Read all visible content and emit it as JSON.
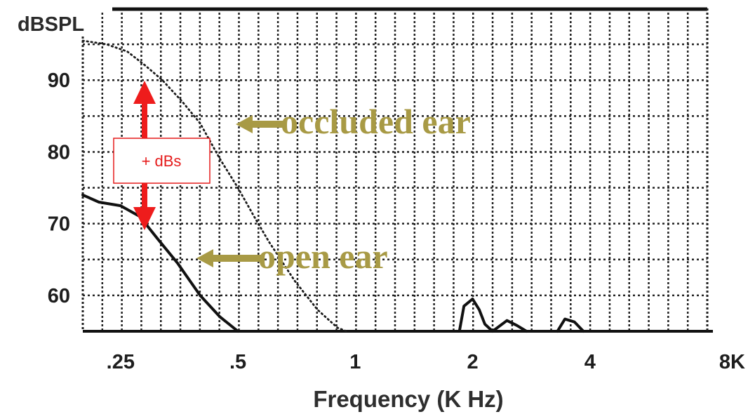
{
  "chart_data": {
    "type": "line",
    "title": "",
    "xlabel": "Frequency (K Hz)",
    "ylabel": "dBSPL",
    "x_scale": "log",
    "x_ticks": [
      {
        "value": 0.25,
        "label": ".25"
      },
      {
        "value": 0.5,
        "label": ".5"
      },
      {
        "value": 1,
        "label": "1"
      },
      {
        "value": 2,
        "label": "2"
      },
      {
        "value": 4,
        "label": "4"
      },
      {
        "value": 8,
        "label": "8K"
      }
    ],
    "y_ticks": [
      {
        "value": 60,
        "label": "60"
      },
      {
        "value": 70,
        "label": "70"
      },
      {
        "value": 80,
        "label": "80"
      },
      {
        "value": 90,
        "label": "90"
      }
    ],
    "xlim": [
      0.2,
      8
    ],
    "ylim": [
      55,
      100
    ],
    "grid": true,
    "series": [
      {
        "name": "",
        "style": "dotted",
        "color": "#1a1a1a",
        "points": [
          [
            0.2,
            95.5
          ],
          [
            0.23,
            95.0
          ],
          [
            0.26,
            94.0
          ],
          [
            0.29,
            92.0
          ],
          [
            0.32,
            90.0
          ],
          [
            0.36,
            87.0
          ],
          [
            0.4,
            84.0
          ],
          [
            0.45,
            79.0
          ],
          [
            0.5,
            75.0
          ],
          [
            0.55,
            71.0
          ],
          [
            0.6,
            67.5
          ],
          [
            0.7,
            62.0
          ],
          [
            0.8,
            58.0
          ],
          [
            0.9,
            55.5
          ],
          [
            0.95,
            55.0
          ]
        ]
      },
      {
        "name": "",
        "style": "solid",
        "color": "#111111",
        "points": [
          [
            0.2,
            74.0
          ],
          [
            0.22,
            73.0
          ],
          [
            0.25,
            72.5
          ],
          [
            0.28,
            71.0
          ],
          [
            0.31,
            68.0
          ],
          [
            0.35,
            64.5
          ],
          [
            0.4,
            60.0
          ],
          [
            0.45,
            57.0
          ],
          [
            0.5,
            55.0
          ]
        ]
      },
      {
        "name": "",
        "style": "solid",
        "color": "#111111",
        "points": [
          [
            1.85,
            55.0
          ],
          [
            1.9,
            58.5
          ],
          [
            2.0,
            59.5
          ],
          [
            2.08,
            58.0
          ],
          [
            2.15,
            56.0
          ],
          [
            2.25,
            55.0
          ],
          [
            2.45,
            56.5
          ],
          [
            2.6,
            55.8
          ],
          [
            2.75,
            55.0
          ]
        ]
      },
      {
        "name": "",
        "style": "solid",
        "color": "#111111",
        "points": [
          [
            3.3,
            55.0
          ],
          [
            3.45,
            56.7
          ],
          [
            3.65,
            56.3
          ],
          [
            3.85,
            55.0
          ]
        ]
      }
    ],
    "annotations": [
      {
        "text": "occluded ear",
        "color": "#a89a45",
        "arrow": "left"
      },
      {
        "text": "open ear",
        "color": "#a89a45",
        "arrow": "left"
      },
      {
        "text": "+ dBs",
        "color": "#e51b1b",
        "arrow": "double-vertical",
        "y_range": [
          70,
          90
        ]
      }
    ]
  }
}
